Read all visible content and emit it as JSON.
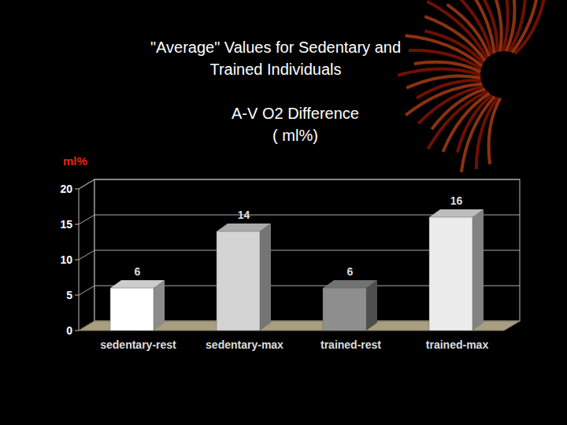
{
  "chart_data": {
    "type": "bar",
    "title": "\"Average\" Values for Sedentary and\nTrained Individuals",
    "subtitle": "A-V O2 Difference\n( ml%)",
    "y_label": "ml%",
    "categories": [
      "sedentary-rest",
      "sedentary-max",
      "trained-rest",
      "trained-max"
    ],
    "values": [
      6,
      14,
      6,
      16
    ],
    "colors": [
      "#ffffff",
      "#d4d4d4",
      "#8e8e8e",
      "#ececec"
    ],
    "ylim": [
      0,
      20
    ],
    "yticks": [
      0,
      5,
      10,
      15,
      20
    ],
    "grid": true,
    "data_labels": true
  }
}
